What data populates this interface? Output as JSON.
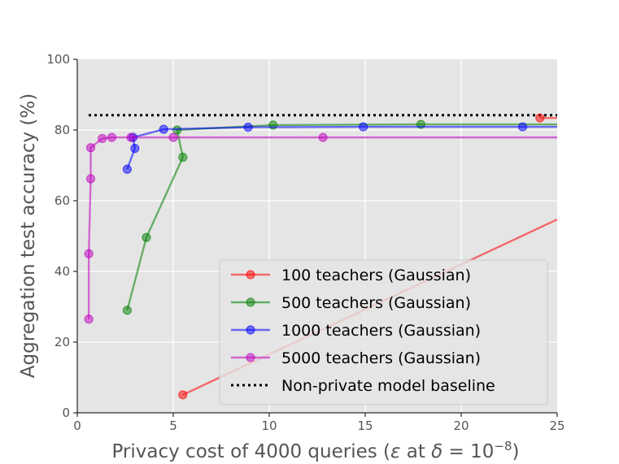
{
  "chart_data": {
    "type": "line",
    "title": "",
    "xlabel_prefix": "Privacy cost of 4000 queries (",
    "xlabel_eps": "ε",
    "xlabel_mid": " at ",
    "xlabel_delta": "δ",
    "xlabel_eq": " = 10",
    "xlabel_exp": "−8",
    "xlabel_suffix": ")",
    "ylabel": "Aggregation test accuracy (%)",
    "xlim": [
      0,
      25
    ],
    "ylim": [
      0,
      100
    ],
    "xticks": [
      0,
      5,
      10,
      15,
      20,
      25
    ],
    "yticks": [
      0,
      20,
      40,
      60,
      80,
      100
    ],
    "grid": true,
    "legend_position": "lower-right",
    "series": [
      {
        "name": "100 teachers (Gaussian)",
        "color": "#ff0000",
        "points": [
          [
            5.5,
            5.1
          ],
          [
            25.0,
            54.7
          ]
        ],
        "tail": [
          [
            24.1,
            83.4
          ],
          [
            25.0,
            83.4
          ]
        ]
      },
      {
        "name": "500 teachers (Gaussian)",
        "color": "#008000",
        "points": [
          [
            2.6,
            29.0
          ],
          [
            3.6,
            49.6
          ],
          [
            5.5,
            72.3
          ],
          [
            5.2,
            80.0
          ],
          [
            10.2,
            81.4
          ],
          [
            17.9,
            81.6
          ],
          [
            25.0,
            81.6
          ]
        ]
      },
      {
        "name": "1000 teachers (Gaussian)",
        "color": "#0000ff",
        "points": [
          [
            2.6,
            68.9
          ],
          [
            3.0,
            74.8
          ],
          [
            2.9,
            77.9
          ],
          [
            4.5,
            80.2
          ],
          [
            8.9,
            80.8
          ],
          [
            14.9,
            80.9
          ],
          [
            23.2,
            80.9
          ],
          [
            25.0,
            80.9
          ]
        ]
      },
      {
        "name": "5000 teachers (Gaussian)",
        "color": "#bf00bf",
        "points": [
          [
            0.6,
            26.5
          ],
          [
            0.6,
            45.0
          ],
          [
            0.7,
            66.2
          ],
          [
            0.7,
            75.0
          ],
          [
            1.3,
            77.6
          ],
          [
            1.8,
            77.9
          ],
          [
            2.8,
            77.9
          ],
          [
            5.0,
            77.9
          ],
          [
            12.8,
            77.9
          ],
          [
            25.0,
            77.9
          ]
        ]
      }
    ],
    "baseline": {
      "name": "Non-private model baseline",
      "y": 84.2,
      "color": "#000000"
    }
  }
}
